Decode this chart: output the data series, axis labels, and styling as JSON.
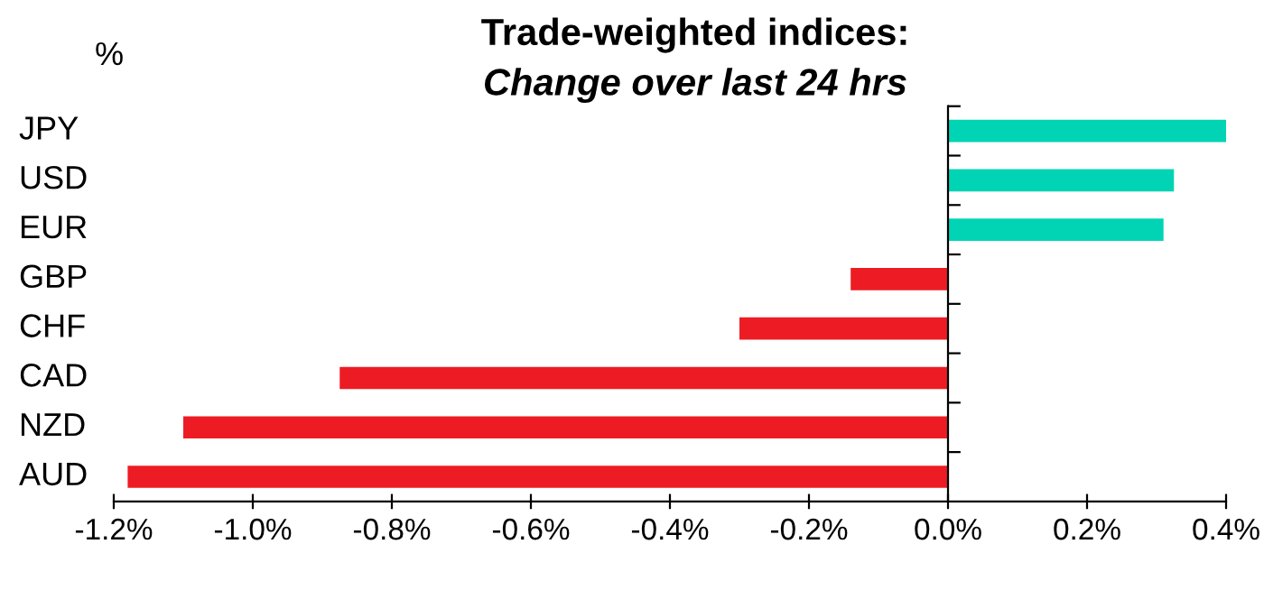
{
  "chart_data": {
    "type": "bar",
    "orientation": "horizontal",
    "title": "Trade-weighted indices:",
    "subtitle": "Change over last 24 hrs",
    "ylabel": "%",
    "categories": [
      "JPY",
      "USD",
      "EUR",
      "GBP",
      "CHF",
      "CAD",
      "NZD",
      "AUD"
    ],
    "values": [
      0.4,
      0.325,
      0.31,
      -0.14,
      -0.3,
      -0.875,
      -1.1,
      -1.18
    ],
    "colors": [
      "#00d4b4",
      "#00d4b4",
      "#00d4b4",
      "#ed1c24",
      "#ed1c24",
      "#ed1c24",
      "#ed1c24",
      "#ed1c24"
    ],
    "xlim": [
      -1.2,
      0.4
    ],
    "xticks": [
      {
        "value": -1.2,
        "label": "-1.2%"
      },
      {
        "value": -1.0,
        "label": "-1.0%"
      },
      {
        "value": -0.8,
        "label": "-0.8%"
      },
      {
        "value": -0.6,
        "label": "-0.6%"
      },
      {
        "value": -0.4,
        "label": "-0.4%"
      },
      {
        "value": -0.2,
        "label": "-0.2%"
      },
      {
        "value": 0.0,
        "label": "0.0%"
      },
      {
        "value": 0.2,
        "label": "0.2%"
      },
      {
        "value": 0.4,
        "label": "0.4%"
      }
    ],
    "legend": false
  }
}
